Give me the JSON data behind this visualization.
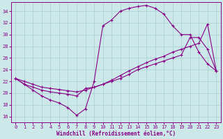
{
  "xlabel": "Windchill (Refroidissement éolien,°C)",
  "background_color": "#cce8e8",
  "line_color": "#880088",
  "grid_color": "#aad4d4",
  "xlim_min": -0.5,
  "xlim_max": 23.5,
  "ylim_min": 15.0,
  "ylim_max": 35.5,
  "yticks": [
    16,
    18,
    20,
    22,
    24,
    26,
    28,
    30,
    32,
    34
  ],
  "xticks": [
    0,
    1,
    2,
    3,
    4,
    5,
    6,
    7,
    8,
    9,
    10,
    11,
    12,
    13,
    14,
    15,
    16,
    17,
    18,
    19,
    20,
    21,
    22,
    23
  ],
  "line1_x": [
    0,
    1,
    2,
    3,
    4,
    5,
    6,
    7,
    8,
    9,
    10,
    11,
    12,
    13,
    14,
    15,
    16,
    17,
    18,
    19,
    20,
    21,
    22,
    23
  ],
  "line1_y": [
    22.5,
    21.5,
    20.5,
    19.5,
    18.8,
    18.3,
    17.5,
    16.2,
    17.3,
    22.0,
    31.5,
    32.5,
    34.0,
    34.5,
    34.8,
    35.0,
    34.5,
    33.5,
    31.5,
    30.0,
    30.0,
    27.0,
    25.0,
    23.8
  ],
  "line2_x": [
    0,
    1,
    2,
    3,
    4,
    5,
    6,
    7,
    8,
    9,
    10,
    11,
    12,
    13,
    14,
    15,
    16,
    17,
    18,
    19,
    20,
    21,
    22,
    23
  ],
  "line2_y": [
    22.5,
    21.5,
    21.0,
    20.5,
    20.2,
    20.0,
    19.8,
    19.5,
    20.8,
    21.0,
    21.5,
    22.0,
    22.5,
    23.2,
    24.0,
    24.5,
    25.0,
    25.5,
    26.0,
    26.5,
    29.5,
    29.5,
    27.5,
    23.8
  ],
  "line3_x": [
    0,
    1,
    2,
    3,
    4,
    5,
    6,
    7,
    8,
    9,
    10,
    11,
    12,
    13,
    14,
    15,
    16,
    17,
    18,
    19,
    20,
    21,
    22,
    23
  ],
  "line3_y": [
    22.5,
    22.0,
    21.5,
    21.0,
    20.8,
    20.6,
    20.4,
    20.2,
    20.5,
    21.0,
    21.5,
    22.2,
    23.0,
    23.8,
    24.5,
    25.2,
    25.8,
    26.3,
    27.0,
    27.5,
    28.0,
    28.5,
    31.8,
    23.8
  ]
}
